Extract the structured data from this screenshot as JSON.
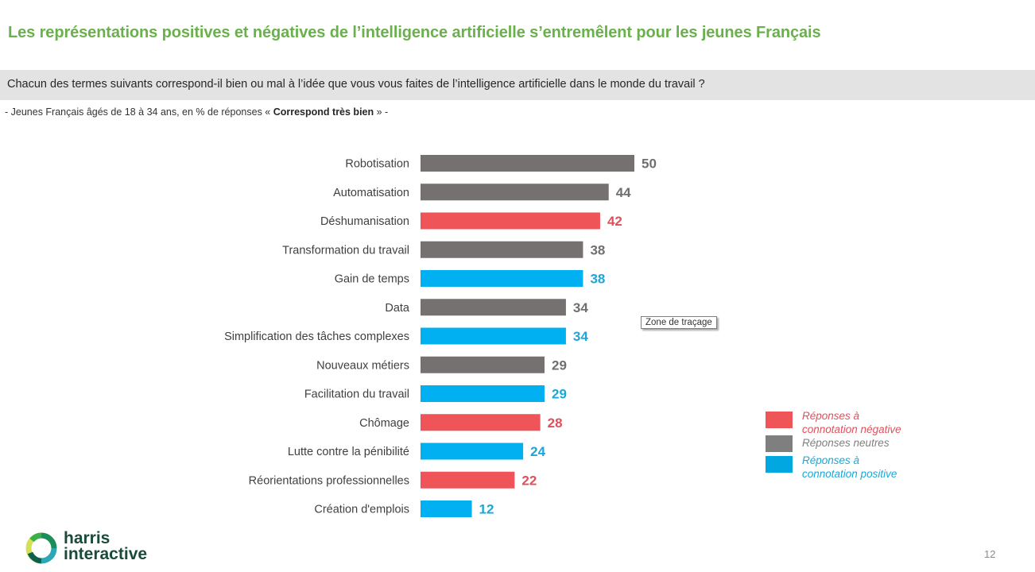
{
  "header": {
    "title": "Les représentations positives et négatives de l’intelligence artificielle s’entremêlent pour les jeunes Français",
    "question": "Chacun des termes suivants correspond-il bien ou mal à l’idée que vous vous faites de l’intelligence artificielle dans le monde du travail ?",
    "subtitle_prefix": "- Jeunes Français âgés de 18 à 34 ans, en % de réponses « ",
    "subtitle_bold": "Correspond très bien",
    "subtitle_suffix": " » -"
  },
  "tooltip": {
    "text": "Zone de traçage"
  },
  "colors": {
    "negative": "#ef5459",
    "neutral": "#767171",
    "positive": "#00b0f0",
    "negative_text": "#e0505a",
    "neutral_text": "#6f6f6f",
    "positive_text": "#1aa7d8",
    "title_green": "#6ab04c"
  },
  "chart_data": {
    "type": "bar",
    "orientation": "horizontal",
    "title": "",
    "xlabel": "",
    "ylabel": "",
    "xlim": [
      0,
      50
    ],
    "grid": false,
    "legend_position": "right",
    "categories": [
      "Robotisation",
      "Automatisation",
      "Déshumanisation",
      "Transformation du travail",
      "Gain de temps",
      "Data",
      "Simplification des tâches complexes",
      "Nouveaux métiers",
      "Facilitation du travail",
      "Chômage",
      "Lutte contre la pénibilité",
      "Réorientations professionnelles",
      "Création d'emplois"
    ],
    "values": [
      50,
      44,
      42,
      38,
      38,
      34,
      34,
      29,
      29,
      28,
      24,
      22,
      12
    ],
    "connotation": [
      "neutral",
      "neutral",
      "negative",
      "neutral",
      "positive",
      "neutral",
      "positive",
      "neutral",
      "positive",
      "negative",
      "positive",
      "negative",
      "positive"
    ],
    "legend": [
      {
        "key": "negative",
        "label_line1": "Réponses à",
        "label_line2": "connotation négative"
      },
      {
        "key": "neutral",
        "label_line1": "Réponses neutres",
        "label_line2": ""
      },
      {
        "key": "positive",
        "label_line1": "Réponses à",
        "label_line2": "connotation positive"
      }
    ]
  },
  "footer": {
    "logo_line1": "harris",
    "logo_line2": "interactive",
    "page_number": "12"
  }
}
